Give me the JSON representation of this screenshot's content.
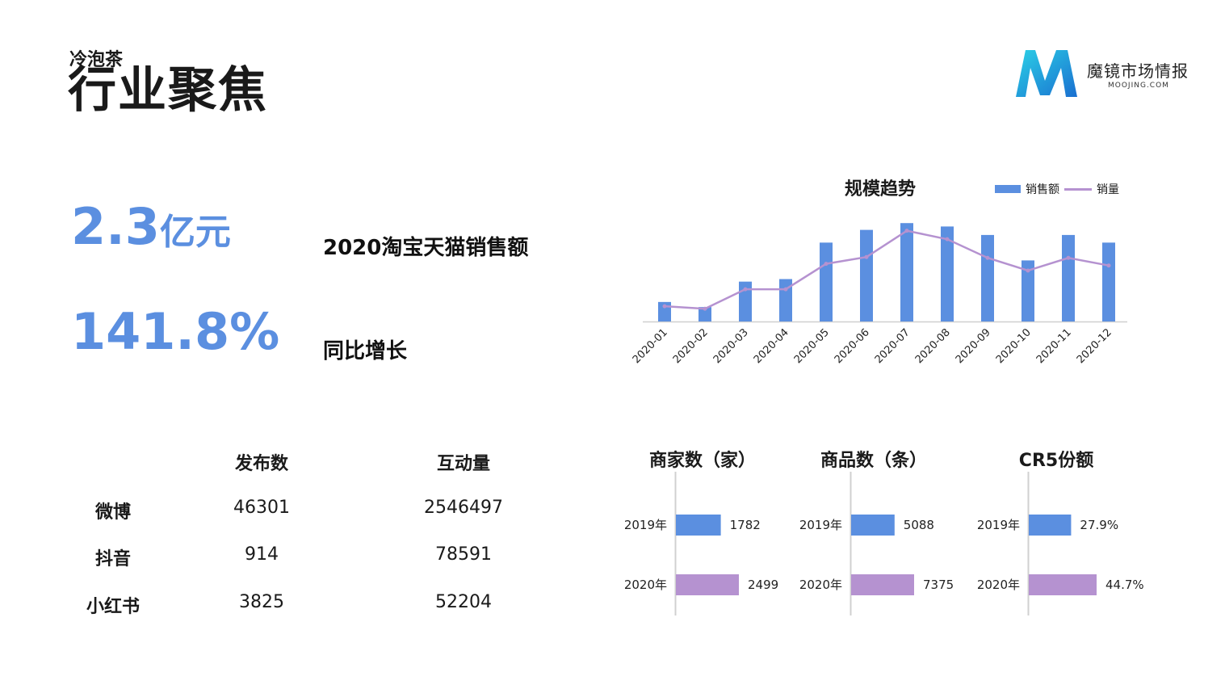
{
  "header": {
    "subtitle": "冷泡茶",
    "title": "行业聚焦"
  },
  "logo": {
    "name": "魔镜市场情报",
    "url": "MOOJING.COM"
  },
  "kpis": [
    {
      "value": "2.3",
      "unit": "亿元",
      "label": "2020淘宝天猫销售额"
    },
    {
      "value": "141.8%",
      "unit": "",
      "label": "同比增长"
    }
  ],
  "social_table": {
    "headers": [
      "发布数",
      "互动量"
    ],
    "rows": [
      {
        "label": "微博",
        "posts": "46301",
        "interactions": "2546497"
      },
      {
        "label": "抖音",
        "posts": "914",
        "interactions": "78591"
      },
      {
        "label": "小红书",
        "posts": "3825",
        "interactions": "52204"
      }
    ]
  },
  "colors": {
    "blue": "#5b8fe0",
    "purple": "#b592d0",
    "axis": "#d0d0d0"
  },
  "chart_data": [
    {
      "type": "bar",
      "title": "规模趋势",
      "categories": [
        "2020-01",
        "2020-02",
        "2020-03",
        "2020-04",
        "2020-05",
        "2020-06",
        "2020-07",
        "2020-08",
        "2020-09",
        "2020-10",
        "2020-11",
        "2020-12"
      ],
      "series": [
        {
          "name": "销售额",
          "kind": "bar",
          "values": [
            23,
            17,
            47,
            50,
            93,
            108,
            116,
            112,
            102,
            72,
            102,
            93
          ]
        },
        {
          "name": "销量",
          "kind": "line",
          "values": [
            18,
            15,
            38,
            38,
            68,
            76,
            107,
            97,
            75,
            60,
            75,
            66
          ]
        }
      ],
      "ylim": [
        0,
        120
      ],
      "legend_position": "top-right",
      "grid": false
    },
    {
      "type": "bar",
      "orientation": "horizontal",
      "title": "商家数（家）",
      "categories": [
        "2019年",
        "2020年"
      ],
      "values": [
        1782,
        2499
      ],
      "labels": [
        "1782",
        "2499"
      ]
    },
    {
      "type": "bar",
      "orientation": "horizontal",
      "title": "商品数（条）",
      "categories": [
        "2019年",
        "2020年"
      ],
      "values": [
        5088,
        7375
      ],
      "labels": [
        "5088",
        "7375"
      ]
    },
    {
      "type": "bar",
      "orientation": "horizontal",
      "title": "CR5份额",
      "categories": [
        "2019年",
        "2020年"
      ],
      "values": [
        27.9,
        44.7
      ],
      "labels": [
        "27.9%",
        "44.7%"
      ]
    }
  ]
}
